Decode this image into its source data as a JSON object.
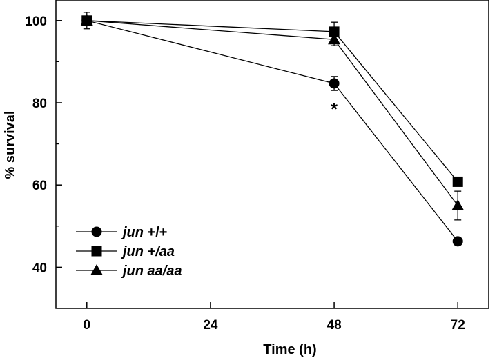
{
  "chart_data": {
    "type": "line",
    "title": "",
    "xlabel": "Time (h)",
    "ylabel": "% survival",
    "x": [
      0,
      48,
      72
    ],
    "xticks": [
      0,
      24,
      48,
      72
    ],
    "xtick_labels": [
      "0",
      "24",
      "48",
      "72"
    ],
    "yticks": [
      40,
      60,
      80,
      100
    ],
    "ytick_labels": [
      "40",
      "60",
      "80",
      "100"
    ],
    "yminor": [
      50,
      70,
      90
    ],
    "xlim": [
      -6,
      78
    ],
    "ylim": [
      30,
      105
    ],
    "grid": false,
    "legend_position": "bottom-left",
    "series": [
      {
        "name": "jun +/+",
        "label_main": "jun",
        "label_suffix": "+/+",
        "marker": "circle",
        "values": [
          100,
          84.7,
          46.3
        ],
        "errors": [
          1.0,
          1.7,
          0
        ]
      },
      {
        "name": "jun +/aa",
        "label_main": "jun",
        "label_suffix": "+/aa",
        "marker": "square",
        "values": [
          100,
          97.3,
          60.8
        ],
        "errors": [
          1.0,
          2.3,
          0
        ]
      },
      {
        "name": "jun aa/aa",
        "label_main": "jun",
        "label_suffix": "aa/aa",
        "marker": "triangle",
        "values": [
          100,
          95.4,
          55.0
        ],
        "errors": [
          2.0,
          1.5,
          3.5
        ]
      }
    ],
    "annotations": [
      {
        "text": "*",
        "x": 48,
        "y": 80.2
      }
    ]
  }
}
